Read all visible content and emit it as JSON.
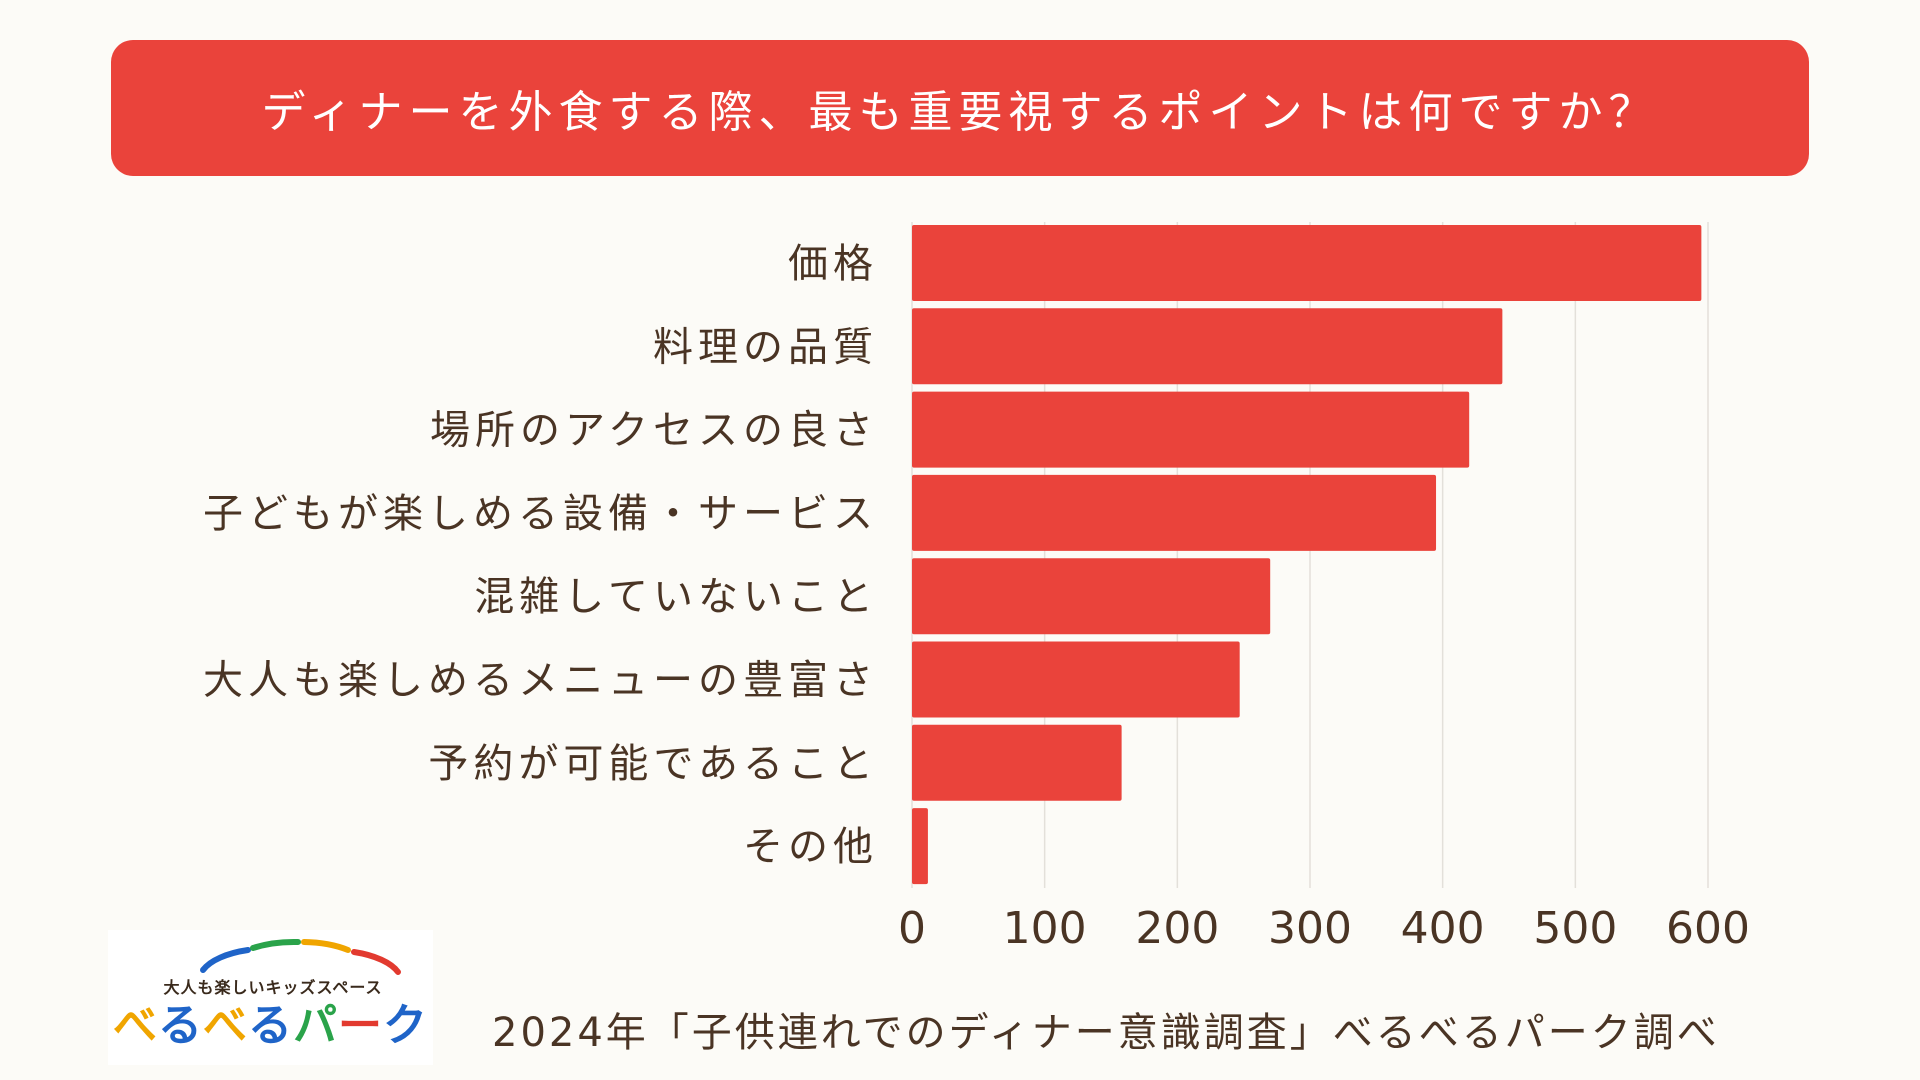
{
  "title": "ディナーを外食する際、最も重要視するポイントは何ですか？",
  "chart_data": {
    "type": "bar",
    "orientation": "horizontal",
    "title": "ディナーを外食する際、最も重要視するポイントは何ですか？",
    "categories": [
      "価格",
      "料理の品質",
      "場所のアクセスの良さ",
      "子どもが楽しめる設備・サービス",
      "混雑していないこと",
      "大人も楽しめるメニューの豊富さ",
      "予約が可能であること",
      "その他"
    ],
    "values": [
      595,
      445,
      420,
      395,
      270,
      247,
      158,
      12
    ],
    "xlim": [
      0,
      600
    ],
    "xticks": [
      0,
      100,
      200,
      300,
      400,
      500,
      600
    ],
    "xlabel": "",
    "ylabel": "",
    "grid": true,
    "bar_color": "#ea433b"
  },
  "logo": {
    "tagline": "大人も楽しいキッズスペース",
    "name_chars": [
      "べ",
      "る",
      "べ",
      "る",
      "パ",
      "ー",
      "ク"
    ],
    "name_colors": [
      "#f0a500",
      "#1f64c8",
      "#f0a500",
      "#1f64c8",
      "#2aa34a",
      "#e23a2f",
      "#1f64c8"
    ],
    "arc_colors": [
      "#1f64c8",
      "#2aa34a",
      "#f0a500",
      "#e23a2f"
    ]
  },
  "source": "2024年「子供連れでのディナー意識調査」べるべるパーク調べ",
  "colors": {
    "accent": "#ea433b",
    "text": "#4a3424",
    "background": "#fcfbf7",
    "gridline": "#e3e0da"
  }
}
